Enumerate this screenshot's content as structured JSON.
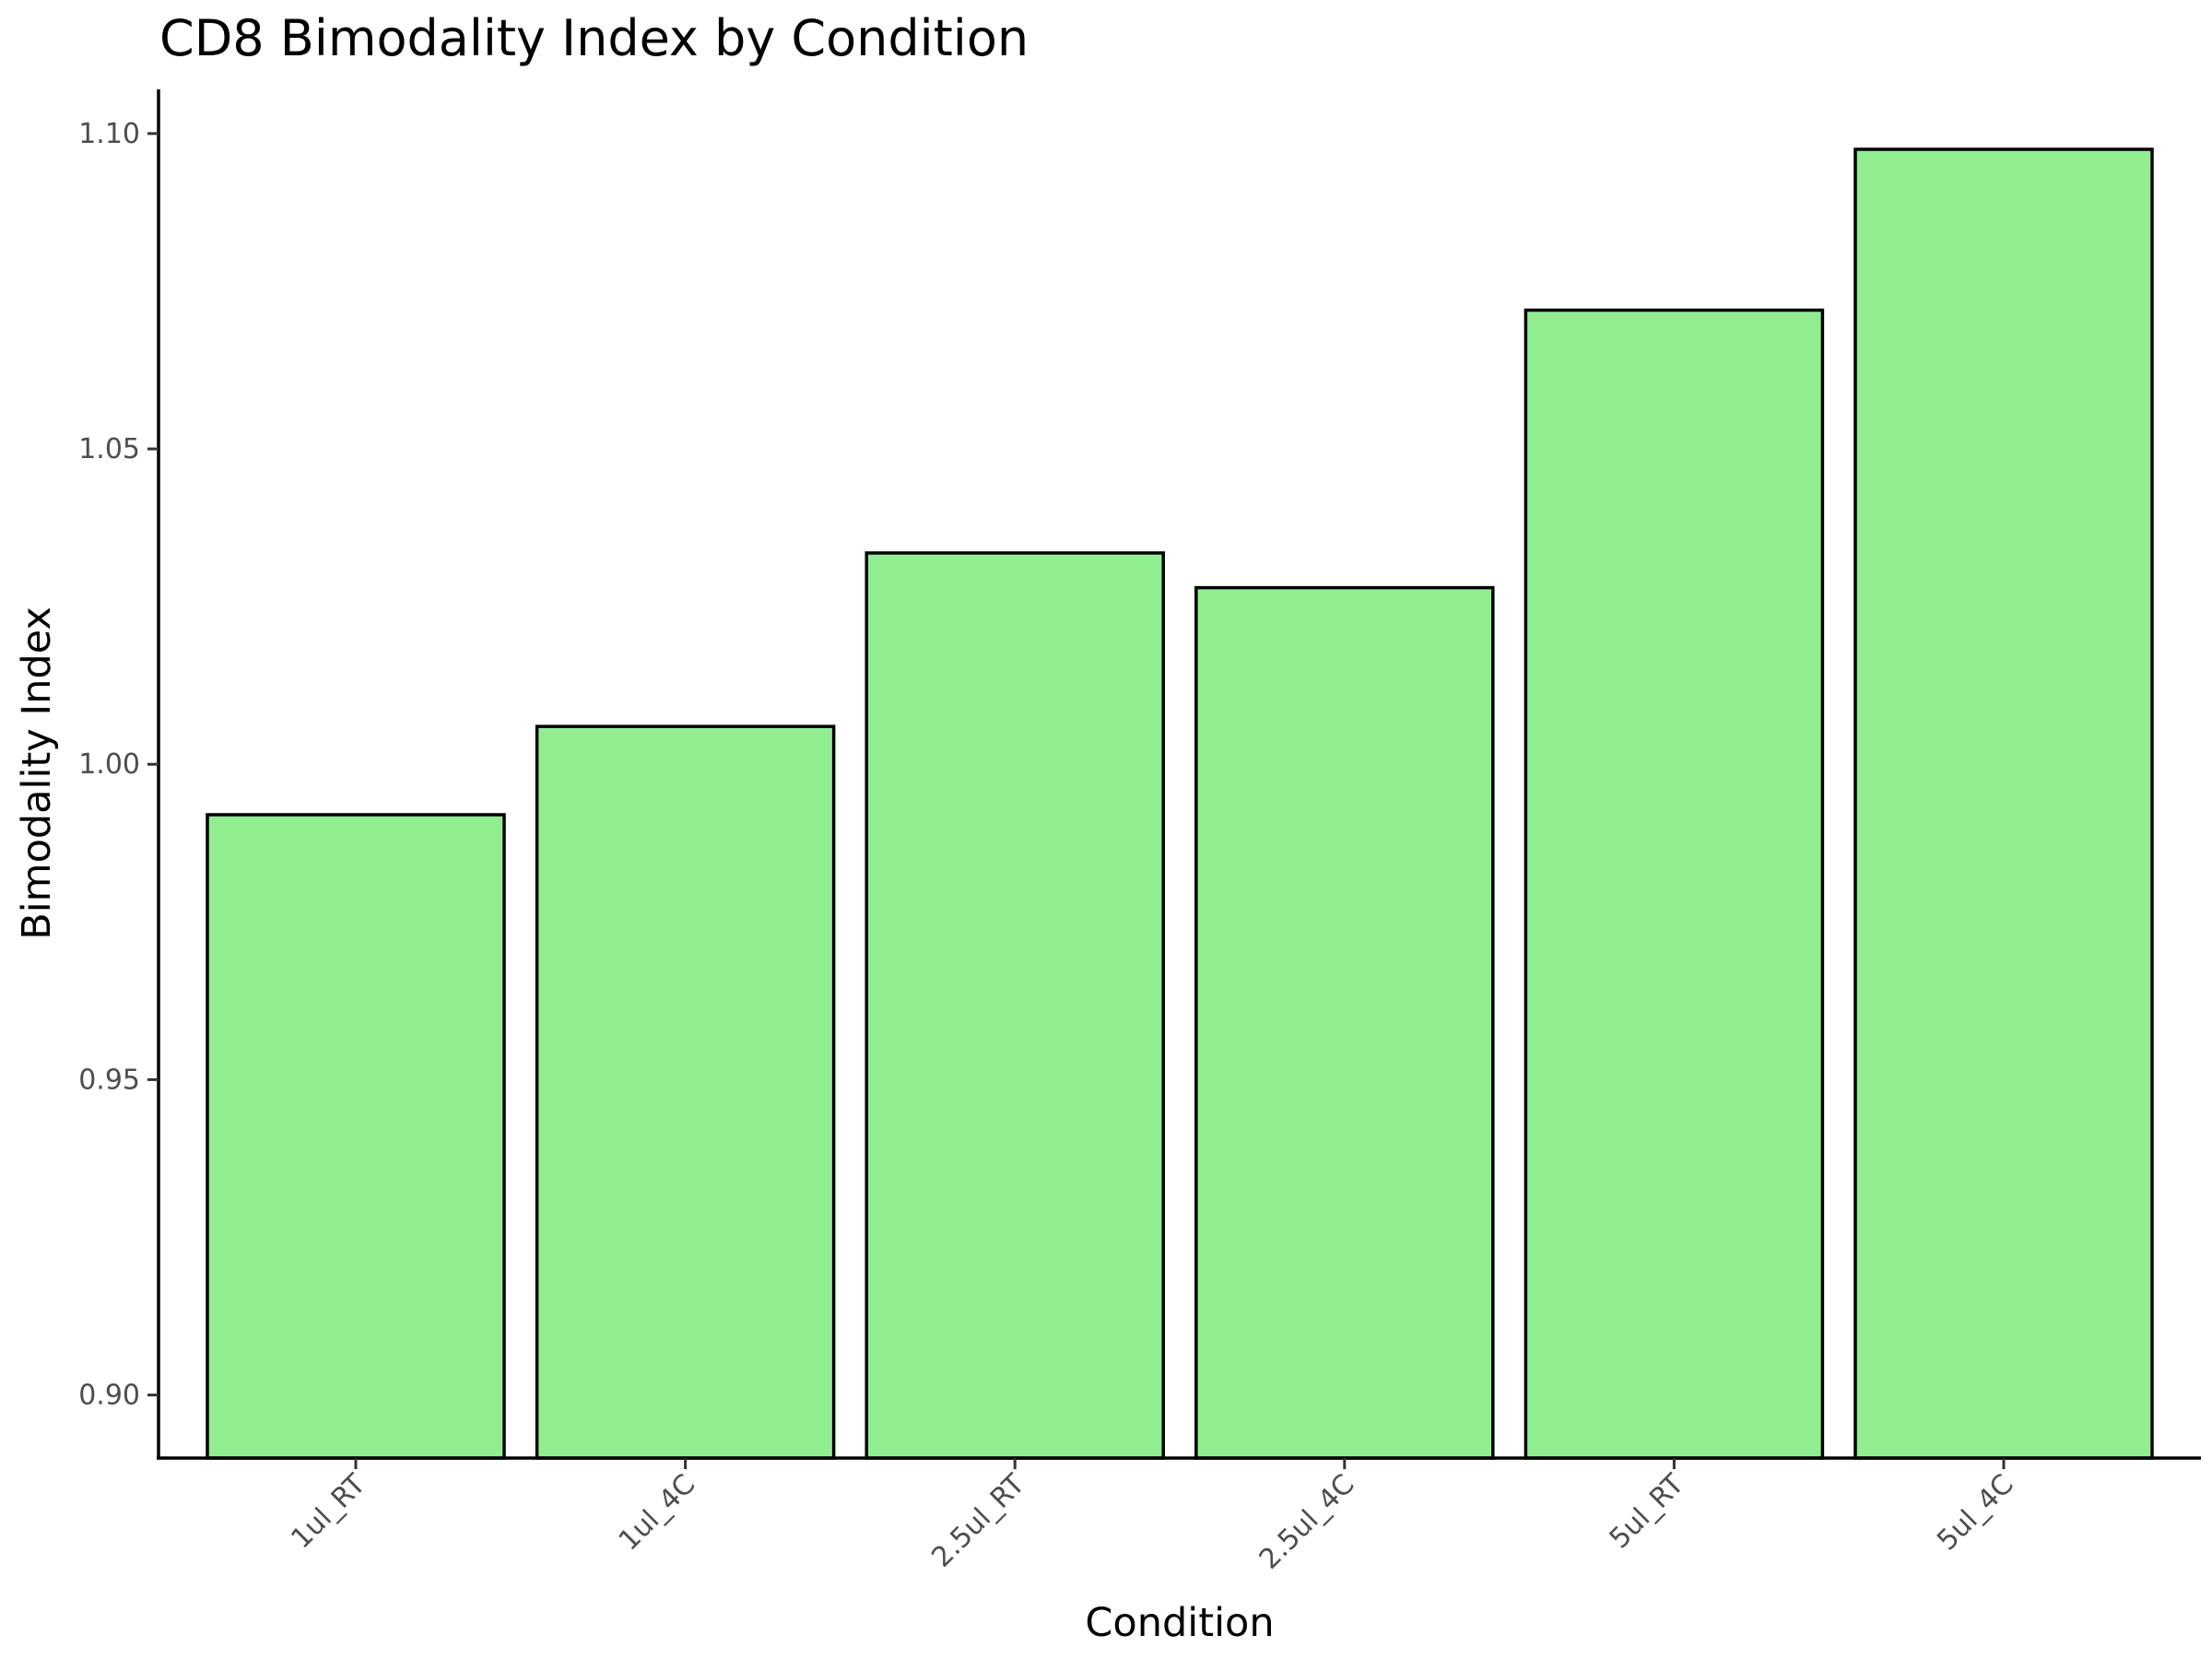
{
  "chart_data": {
    "type": "bar",
    "title": "CD8 Bimodality Index by Condition",
    "xlabel": "Condition",
    "ylabel": "Bimodality Index",
    "categories": [
      "1ul_RT",
      "1ul_4C",
      "2.5ul_RT",
      "2.5ul_4C",
      "5ul_RT",
      "5ul_4C"
    ],
    "values": [
      0.992,
      1.006,
      1.0335,
      1.028,
      1.072,
      1.0975
    ],
    "ylim": [
      0.89,
      1.107
    ],
    "yticks": [
      0.9,
      0.95,
      1.0,
      1.05,
      1.1
    ],
    "ytick_labels": [
      "0.90",
      "0.95",
      "1.00",
      "1.05",
      "1.10"
    ],
    "grid": false,
    "legend": "none",
    "bar_color": "#90EE90",
    "bar_edge_color": "#000000"
  }
}
